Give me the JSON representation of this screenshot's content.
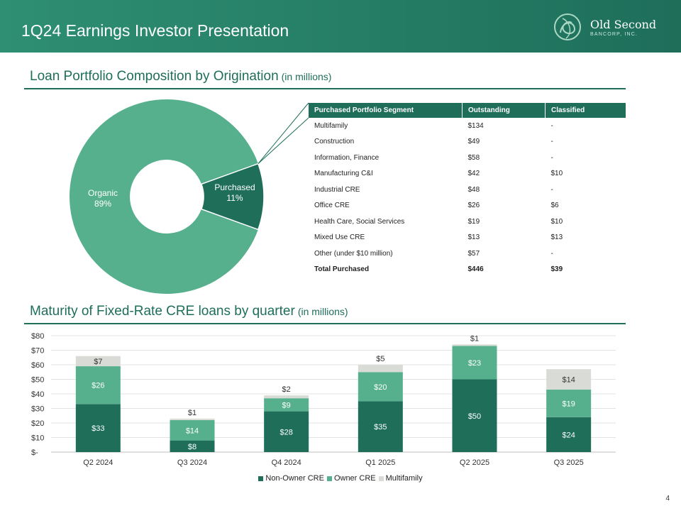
{
  "header": {
    "title": "1Q24 Earnings Investor Presentation",
    "logo_name": "Old Second",
    "logo_sub": "BANCORP, INC."
  },
  "colors": {
    "dark_green": "#1e6e5a",
    "mid_green": "#56b08e",
    "light_gray": "#d9dcd6",
    "white": "#ffffff"
  },
  "section1": {
    "title": "Loan Portfolio Composition by Origination",
    "unit": "(in millions)"
  },
  "section2": {
    "title": "Maturity of Fixed-Rate CRE loans by quarter",
    "unit": "(in millions)"
  },
  "donut": {
    "organic": {
      "name": "Organic",
      "pct": "89%",
      "value": 89
    },
    "purchased": {
      "name": "Purchased",
      "pct": "11%",
      "value": 11
    }
  },
  "table": {
    "headers": [
      "Purchased Portfolio Segment",
      "Outstanding",
      "Classified"
    ],
    "rows": [
      [
        "Multifamily",
        "$134",
        "-"
      ],
      [
        "Construction",
        "$49",
        "-"
      ],
      [
        "Information, Finance",
        "$58",
        "-"
      ],
      [
        "Manufacturing C&I",
        "$42",
        "$10"
      ],
      [
        "Industrial CRE",
        "$48",
        "-"
      ],
      [
        "Office CRE",
        "$26",
        "$6"
      ],
      [
        "Health Care, Social Services",
        "$19",
        "$10"
      ],
      [
        "Mixed Use CRE",
        "$13",
        "$13"
      ],
      [
        "Other (under $10 million)",
        "$57",
        "-"
      ]
    ],
    "total": [
      "Total Purchased",
      "$446",
      "$39"
    ]
  },
  "chart_data": {
    "type": "bar",
    "stacked": true,
    "title": "Maturity of Fixed-Rate CRE loans by quarter (in millions)",
    "categories": [
      "Q2 2024",
      "Q3 2024",
      "Q4 2024",
      "Q1 2025",
      "Q2 2025",
      "Q3 2025"
    ],
    "series": [
      {
        "name": "Non-Owner CRE",
        "values": [
          33,
          8,
          28,
          35,
          50,
          24
        ],
        "labels": [
          "$33",
          "$8",
          "$28",
          "$35",
          "$50",
          "$24"
        ]
      },
      {
        "name": "Owner CRE",
        "values": [
          26,
          14,
          9,
          20,
          23,
          19
        ],
        "labels": [
          "$26",
          "$14",
          "$9",
          "$20",
          "$23",
          "$19"
        ]
      },
      {
        "name": "Multifamily",
        "values": [
          7,
          1,
          2,
          5,
          1,
          14
        ],
        "labels": [
          "$7",
          "$1",
          "$2",
          "$5",
          "$1",
          "$14"
        ]
      }
    ],
    "ylim": [
      0,
      80
    ],
    "yticks": [
      0,
      10,
      20,
      30,
      40,
      50,
      60,
      70,
      80
    ],
    "ytick_labels": [
      "$-",
      "$10",
      "$20",
      "$30",
      "$40",
      "$50",
      "$60",
      "$70",
      "$80"
    ],
    "legend_position": "bottom",
    "grid": true
  },
  "page_number": "4"
}
